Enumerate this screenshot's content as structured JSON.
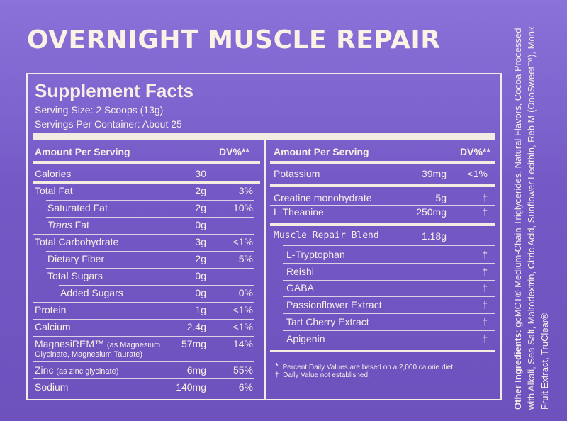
{
  "title": "OVERNIGHT MUSCLE REPAIR",
  "facts": {
    "heading": "Supplement Facts",
    "serving_size": "Serving Size: 2 Scoops (13g)",
    "servings_per_container": "Servings Per Container: About 25",
    "left_header": {
      "amount": "Amount Per Serving",
      "dv": "DV%**"
    },
    "right_header": {
      "amount": "Amount Per Serving",
      "dv": "DV%**"
    },
    "left_rows": [
      {
        "name": "Calories",
        "amount": "30",
        "dv": ""
      },
      {
        "name": "Total Fat",
        "amount": "2g",
        "dv": "3%"
      },
      {
        "name": "Saturated Fat",
        "amount": "2g",
        "dv": "10%"
      },
      {
        "name": "Fat",
        "name_italic": "Trans",
        "amount": "0g",
        "dv": ""
      },
      {
        "name": "Total Carbohydrate",
        "amount": "3g",
        "dv": "<1%"
      },
      {
        "name": "Dietary Fiber",
        "amount": "2g",
        "dv": "5%"
      },
      {
        "name": "Total Sugars",
        "amount": "0g",
        "dv": ""
      },
      {
        "name": "Added Sugars",
        "amount": "0g",
        "dv": "0%"
      },
      {
        "name": "Protein",
        "amount": "1g",
        "dv": "<1%"
      },
      {
        "name": "Calcium",
        "amount": "2.4g",
        "dv": "<1%"
      },
      {
        "name": "MagnesiREM™",
        "sub": "(as Magnesium",
        "sub2": "Glycinate, Magnesium Taurate)",
        "amount": "57mg",
        "dv": "14%"
      },
      {
        "name": "Zinc",
        "sub": "(as zinc glycinate)",
        "amount": "6mg",
        "dv": "55%"
      },
      {
        "name": "Sodium",
        "amount": "140mg",
        "dv": "6%"
      }
    ],
    "right_rows": [
      {
        "name": "Potassium",
        "amount": "39mg",
        "dv": "<1%"
      },
      {
        "name": "Creatine monohydrate",
        "amount": "5g",
        "dv": "†"
      },
      {
        "name": "L-Theanine",
        "amount": "250mg",
        "dv": "†"
      },
      {
        "name": "Muscle Repair Blend",
        "amount": "1.18g",
        "dv": ""
      },
      {
        "name": "L-Tryptophan",
        "amount": "",
        "dv": "†"
      },
      {
        "name": "Reishi",
        "amount": "",
        "dv": "†"
      },
      {
        "name": "GABA",
        "amount": "",
        "dv": "†"
      },
      {
        "name": "Passionflower Extract",
        "amount": "",
        "dv": "†"
      },
      {
        "name": "Tart Cherry Extract",
        "amount": "",
        "dv": "†"
      },
      {
        "name": "Apigenin",
        "amount": "",
        "dv": "†"
      }
    ],
    "notes": [
      {
        "mark": "*",
        "text": "Percent Daily Values are based on a 2,000 calorie diet."
      },
      {
        "mark": "†",
        "text": "Daily Value not established."
      }
    ]
  },
  "other_ingredients": {
    "label": "Other Ingredients:",
    "text": "goMCT® Medium-Chain Triglycerides, Natural Flavors, Cocoa Processed with Alkali, Sea Salt, Maltodextrin, Citric Acid, Sunflower Lecithin,  Reb M (OnoSweet™), Monk Fruit Extract, TruClear®"
  }
}
